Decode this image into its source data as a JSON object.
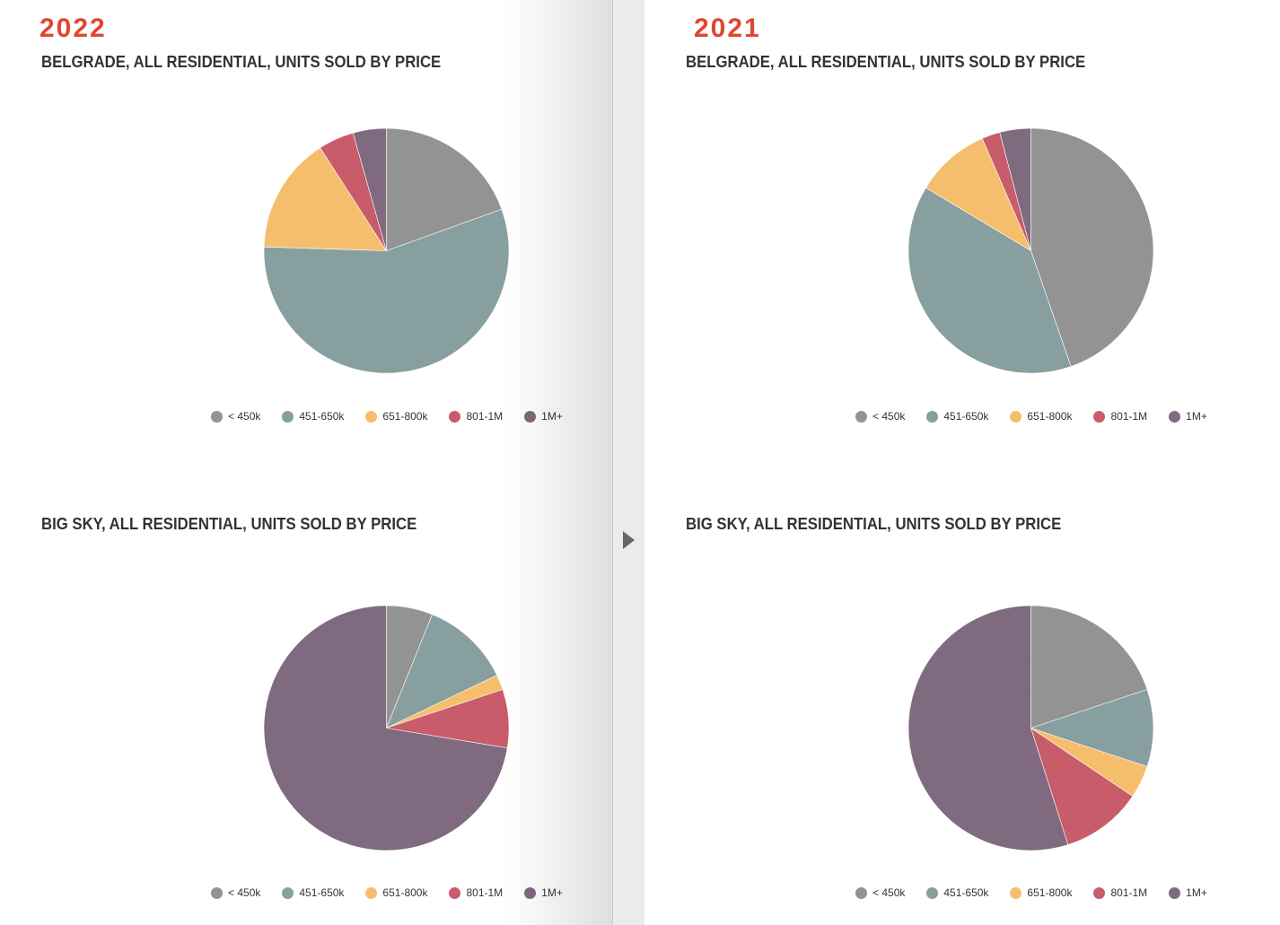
{
  "colors": [
    "#939393",
    "#87a09f",
    "#f5be6d",
    "#c85c6b",
    "#806a80"
  ],
  "pages": [
    {
      "year": "2022"
    },
    {
      "year": "2021"
    }
  ],
  "nav": {
    "arrow_icon": "chevron-right-icon"
  },
  "chart_data": [
    {
      "type": "pie",
      "title": "BELGRADE, ALL RESIDENTIAL, UNITS SOLD BY PRICE",
      "categories": [
        "< 450k",
        "451-650k",
        "651-800k",
        "801-1M",
        "1M+"
      ],
      "values": [
        19.5,
        56.0,
        15.4,
        4.7,
        4.4
      ],
      "legend": "bottom"
    },
    {
      "type": "pie",
      "title": "BIG SKY, ALL RESIDENTIAL, UNITS SOLD BY PRICE",
      "categories": [
        "< 450k",
        "451-650k",
        "651-800k",
        "801-1M",
        "1M+"
      ],
      "values": [
        6.1,
        11.8,
        2.0,
        7.7,
        72.4
      ],
      "legend": "bottom"
    },
    {
      "type": "pie",
      "title": "BELGRADE, ALL RESIDENTIAL, UNITS SOLD BY PRICE",
      "categories": [
        "< 450k",
        "451-650k",
        "651-800k",
        "801-1M",
        "1M+"
      ],
      "values": [
        44.7,
        38.9,
        9.9,
        2.4,
        4.1
      ],
      "legend": "bottom"
    },
    {
      "type": "pie",
      "title": "BIG SKY, ALL RESIDENTIAL, UNITS SOLD BY PRICE",
      "categories": [
        "< 450k",
        "451-650k",
        "651-800k",
        "801-1M",
        "1M+"
      ],
      "values": [
        19.9,
        10.2,
        4.3,
        10.7,
        54.9
      ],
      "legend": "bottom"
    }
  ]
}
